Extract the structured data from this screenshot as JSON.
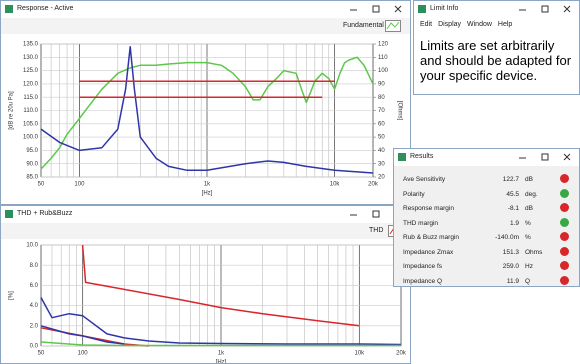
{
  "response": {
    "title": "Response - Active",
    "toolbar_label": "Fundamental",
    "chart": {
      "type": "line",
      "log_x": true,
      "grid": true,
      "xlabel": "[Hz]",
      "ylabel": "[dB re 20u Pa]",
      "y2label": "[Ohms]",
      "xlim": [
        50,
        20000
      ],
      "ylim": [
        85,
        135
      ],
      "y2lim": [
        20,
        120
      ],
      "xticks": [
        50,
        100,
        {
          "value": 1000,
          "label": "1k"
        },
        {
          "value": 10000,
          "label": "10k"
        },
        {
          "value": 20000,
          "label": "20k"
        }
      ],
      "xminor": [
        60,
        70,
        80,
        90,
        200,
        300,
        400,
        500,
        600,
        700,
        800,
        900,
        2000,
        3000,
        4000,
        5000,
        6000,
        7000,
        8000,
        9000
      ],
      "yticks": [
        {
          "value": 135,
          "label": "135.0"
        },
        {
          "value": 130,
          "label": "130.0"
        },
        {
          "value": 125,
          "label": "125.0"
        },
        {
          "value": 120,
          "label": "120.0"
        },
        {
          "value": 115,
          "label": "115.0"
        },
        {
          "value": 110,
          "label": "110.0"
        },
        {
          "value": 105,
          "label": "105.0"
        },
        {
          "value": 100,
          "label": "100.0"
        },
        {
          "value": 95,
          "label": "95.0"
        },
        {
          "value": 90,
          "label": "90.0"
        },
        {
          "value": 85,
          "label": "85.0"
        }
      ],
      "y2ticks": [
        120,
        110,
        100,
        90,
        80,
        70,
        60,
        50,
        40,
        30,
        20
      ],
      "series": [
        {
          "color": "#5cc84a",
          "x": [
            50,
            60,
            70,
            80,
            100,
            120,
            150,
            200,
            250,
            300,
            400,
            500,
            700,
            1000,
            1300,
            1600,
            2000,
            2300,
            2600,
            3000,
            3500,
            4000,
            5000,
            5500,
            6000,
            6500,
            7000,
            8000,
            9000,
            10000,
            11000,
            12000,
            13000,
            15000,
            17000,
            20000
          ],
          "values": [
            88,
            92,
            96,
            101,
            107,
            112,
            118,
            124,
            126,
            127,
            127,
            127.5,
            128,
            128,
            127,
            124,
            119,
            114,
            114,
            119,
            122,
            125,
            124,
            118,
            113,
            117,
            121,
            124,
            122,
            118,
            124,
            128,
            129,
            130,
            127,
            120
          ]
        },
        {
          "color": "#2e35a8",
          "axis": "y2",
          "x": [
            50,
            70,
            100,
            150,
            200,
            230,
            250,
            270,
            300,
            400,
            500,
            700,
            1000,
            2000,
            3000,
            4000,
            6000,
            10000,
            20000
          ],
          "values": [
            56,
            46,
            40,
            42,
            56,
            86,
            118,
            86,
            50,
            34,
            28,
            25,
            25,
            30,
            32,
            31,
            28,
            25,
            23
          ]
        },
        {
          "color": "#d8262a",
          "x": [
            100,
            10000
          ],
          "values": [
            121,
            121
          ]
        },
        {
          "color": "#d8262a",
          "x": [
            100,
            8000
          ],
          "values": [
            115,
            115
          ]
        }
      ]
    }
  },
  "limit_info": {
    "title": "Limit Info",
    "menu": [
      "Edit",
      "Display",
      "Window",
      "Help"
    ],
    "text": "Limits are set arbitrarily and should be adapted for your specific device."
  },
  "thd": {
    "title": "THD + Rub&Buzz",
    "toolbar_label": "THD",
    "chart": {
      "type": "line",
      "log_x": true,
      "grid": true,
      "xlabel": "[Hz]",
      "ylabel": "[%]",
      "xlim": [
        50,
        20000
      ],
      "ylim": [
        0,
        10
      ],
      "xticks": [
        50,
        100,
        {
          "value": 1000,
          "label": "1k"
        },
        {
          "value": 10000,
          "label": "10k"
        },
        {
          "value": 20000,
          "label": "20k"
        }
      ],
      "xminor": [
        60,
        70,
        80,
        90,
        200,
        300,
        400,
        500,
        600,
        700,
        800,
        900,
        2000,
        3000,
        4000,
        5000,
        6000,
        7000,
        8000,
        9000
      ],
      "yticks": [
        {
          "value": 10,
          "label": "10.0"
        },
        {
          "value": 8,
          "label": "8.0"
        },
        {
          "value": 6,
          "label": "6.0"
        },
        {
          "value": 4,
          "label": "4.0"
        },
        {
          "value": 2,
          "label": "2.0"
        },
        {
          "value": 0,
          "label": "0.0"
        }
      ],
      "series": [
        {
          "color": "#d8262a",
          "x": [
            100,
            105,
            200,
            500,
            1000,
            2000,
            5000,
            10000
          ],
          "values": [
            10,
            6.3,
            5.6,
            4.6,
            3.8,
            3.2,
            2.5,
            2.0
          ]
        },
        {
          "color": "#d8262a",
          "x": [
            50,
            100,
            200,
            300
          ],
          "values": [
            1.8,
            1.0,
            0.2,
            0
          ]
        },
        {
          "color": "#2e35a8",
          "x": [
            50,
            60,
            80,
            100,
            150,
            200,
            300,
            500,
            1000,
            3000,
            10000,
            20000
          ],
          "values": [
            4.8,
            2.8,
            3.2,
            3.0,
            1.2,
            0.8,
            0.5,
            0.3,
            0.25,
            0.2,
            0.2,
            0.15
          ]
        },
        {
          "color": "#2e35a8",
          "x": [
            50,
            80,
            100,
            150,
            200
          ],
          "values": [
            2.0,
            1.2,
            1.0,
            0.4,
            0.2
          ]
        },
        {
          "color": "#5cc84a",
          "x": [
            50,
            100,
            200,
            1000,
            10000,
            20000
          ],
          "values": [
            0.4,
            0.1,
            0.05,
            0.05,
            0.05,
            0.05
          ]
        }
      ]
    }
  },
  "results": {
    "title": "Results",
    "rows": [
      {
        "label": "Ave Sensitivity",
        "value": "122.7",
        "unit": "dB",
        "color": "#d8262a"
      },
      {
        "label": "Polarity",
        "value": "45.5",
        "unit": "deg.",
        "color": "#3aa845"
      },
      {
        "label": "Response margin",
        "value": "-8.1",
        "unit": "dB",
        "color": "#d8262a"
      },
      {
        "label": "THD margin",
        "value": "1.9",
        "unit": "%",
        "color": "#3aa845"
      },
      {
        "label": "Rub & Buzz margin",
        "value": "-140.0m",
        "unit": "%",
        "color": "#d8262a"
      },
      {
        "label": "Impedance Zmax",
        "value": "151.3",
        "unit": "Ohms",
        "color": "#d8262a"
      },
      {
        "label": "Impedance fs",
        "value": "259.0",
        "unit": "Hz",
        "color": "#d8262a"
      },
      {
        "label": "Impedance Q",
        "value": "11.9",
        "unit": "Q",
        "color": "#d8262a"
      }
    ]
  }
}
